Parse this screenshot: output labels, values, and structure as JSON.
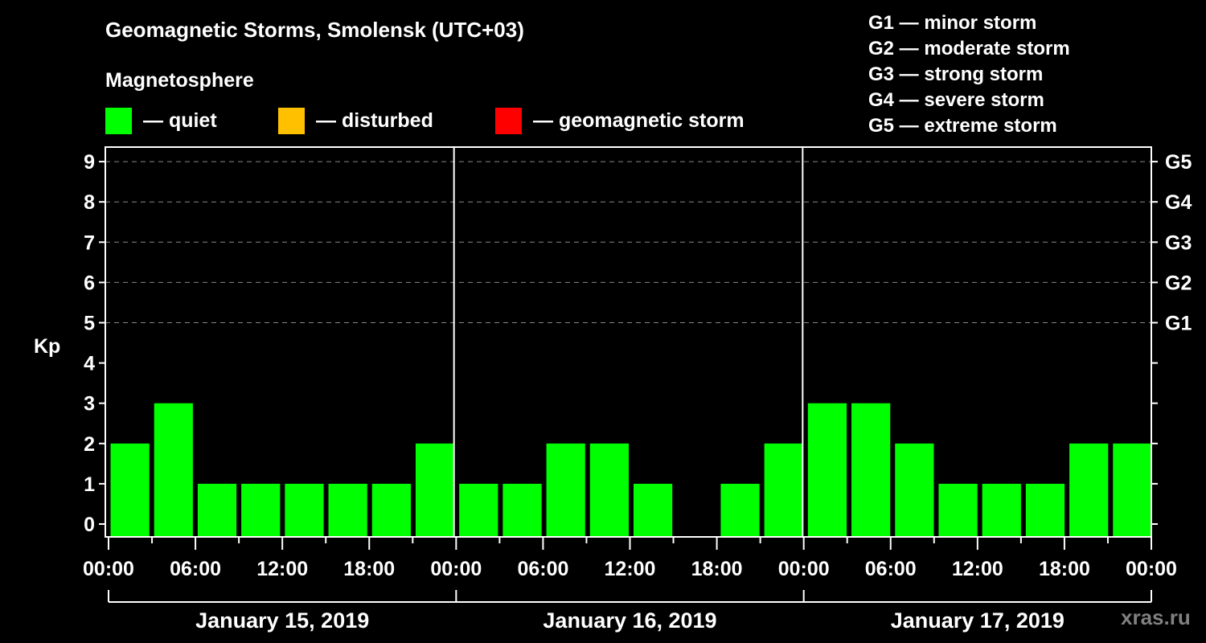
{
  "header": {
    "title": "Geomagnetic Storms, Smolensk (UTC+03)",
    "subtitle": "Magnetosphere"
  },
  "status_legend": [
    {
      "label": "— quiet",
      "color": "#00ff00"
    },
    {
      "label": "— disturbed",
      "color": "#ffc000"
    },
    {
      "label": "— geomagnetic storm",
      "color": "#ff0000"
    }
  ],
  "storm_scale_legend": [
    {
      "label": "G1 — minor storm"
    },
    {
      "label": "G2 — moderate storm"
    },
    {
      "label": "G3 — strong storm"
    },
    {
      "label": "G4 — severe storm"
    },
    {
      "label": "G5 — extreme storm"
    }
  ],
  "watermark": "xras.ru",
  "colors": {
    "background": "#000000",
    "axis": "#ffffff",
    "grid": "#888888",
    "quiet": "#00ff00",
    "disturbed": "#ffc000",
    "storm": "#ff0000"
  },
  "chart_data": {
    "type": "bar",
    "title": "Geomagnetic Storms, Smolensk (UTC+03)",
    "subtitle": "Magnetosphere",
    "xlabel": "",
    "ylabel": "Kp",
    "ylim": [
      0,
      9
    ],
    "yticks": [
      0,
      1,
      2,
      3,
      4,
      5,
      6,
      7,
      8,
      9
    ],
    "right_axis_ticks": [
      {
        "kp": 5,
        "label": "G1"
      },
      {
        "kp": 6,
        "label": "G2"
      },
      {
        "kp": 7,
        "label": "G3"
      },
      {
        "kp": 8,
        "label": "G4"
      },
      {
        "kp": 9,
        "label": "G5"
      }
    ],
    "grid": {
      "horizontal_dashed_at": [
        5,
        6,
        7,
        8,
        9
      ]
    },
    "x_tick_labels": [
      "00:00",
      "06:00",
      "12:00",
      "18:00",
      "00:00",
      "06:00",
      "12:00",
      "18:00",
      "00:00",
      "06:00",
      "12:00",
      "18:00",
      "00:00"
    ],
    "days": [
      {
        "label": "January 15, 2019",
        "values": [
          2,
          3,
          1,
          1,
          1,
          1,
          1,
          2
        ]
      },
      {
        "label": "January 16, 2019",
        "values": [
          1,
          1,
          2,
          2,
          1,
          0,
          1,
          2
        ]
      },
      {
        "label": "January 17, 2019",
        "values": [
          3,
          3,
          2,
          1,
          1,
          1,
          2,
          2
        ]
      }
    ],
    "interval_hours": 3,
    "categories": [
      "Jan 15 00-03",
      "Jan 15 03-06",
      "Jan 15 06-09",
      "Jan 15 09-12",
      "Jan 15 12-15",
      "Jan 15 15-18",
      "Jan 15 18-21",
      "Jan 15 21-24",
      "Jan 16 00-03",
      "Jan 16 03-06",
      "Jan 16 06-09",
      "Jan 16 09-12",
      "Jan 16 12-15",
      "Jan 16 15-18",
      "Jan 16 18-21",
      "Jan 16 21-24",
      "Jan 17 00-03",
      "Jan 17 03-06",
      "Jan 17 06-09",
      "Jan 17 09-12",
      "Jan 17 12-15",
      "Jan 17 15-18",
      "Jan 17 18-21",
      "Jan 17 21-24"
    ],
    "series": [
      {
        "name": "Kp",
        "values": [
          2,
          3,
          1,
          1,
          1,
          1,
          1,
          2,
          1,
          1,
          2,
          2,
          1,
          0,
          1,
          2,
          3,
          3,
          2,
          1,
          1,
          1,
          2,
          2
        ]
      }
    ],
    "legend_position": "top"
  }
}
